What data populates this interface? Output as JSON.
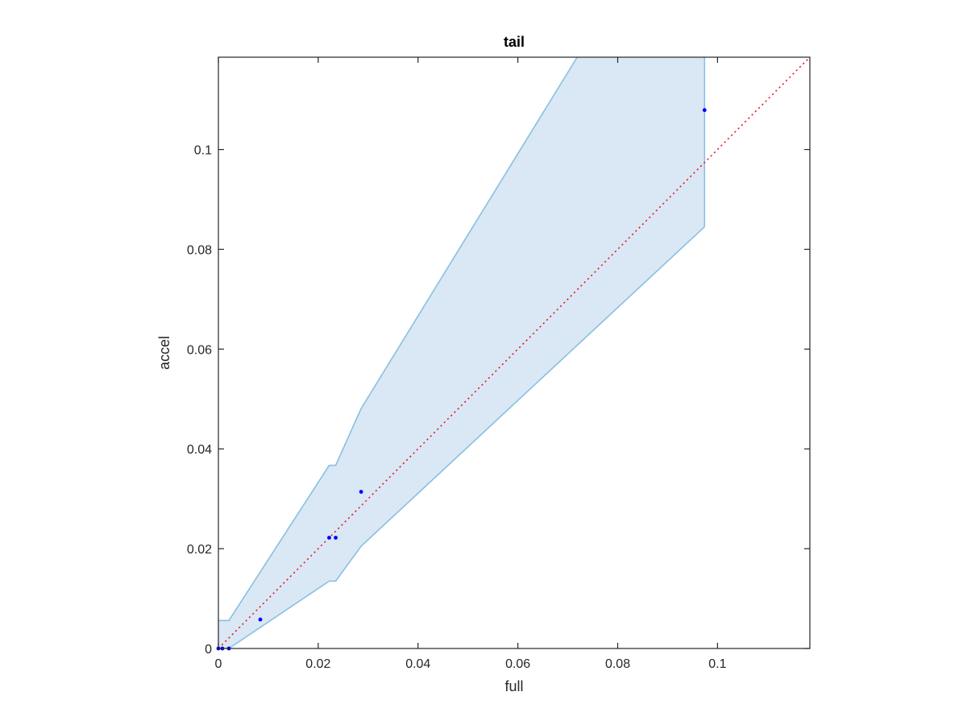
{
  "chart_data": {
    "type": "scatter",
    "title": "tail",
    "xlabel": "full",
    "ylabel": "accel",
    "xlim": [
      0,
      0.1185
    ],
    "ylim": [
      0,
      0.1185
    ],
    "grid": false,
    "legend": "none",
    "x_ticks": [
      {
        "value": 0,
        "label": "0"
      },
      {
        "value": 0.02,
        "label": "0.02"
      },
      {
        "value": 0.04,
        "label": "0.04"
      },
      {
        "value": 0.06,
        "label": "0.06"
      },
      {
        "value": 0.08,
        "label": "0.08"
      },
      {
        "value": 0.1,
        "label": "0.1"
      }
    ],
    "y_ticks": [
      {
        "value": 0,
        "label": "0"
      },
      {
        "value": 0.02,
        "label": "0.02"
      },
      {
        "value": 0.04,
        "label": "0.04"
      },
      {
        "value": 0.06,
        "label": "0.06"
      },
      {
        "value": 0.08,
        "label": "0.08"
      },
      {
        "value": 0.1,
        "label": "0.1"
      }
    ],
    "points": {
      "x": [
        0.0,
        0.0008,
        0.0021,
        0.0084,
        0.0222,
        0.0235,
        0.0286,
        0.0974
      ],
      "y": [
        0.0,
        0.0,
        0.0,
        0.0058,
        0.0222,
        0.0222,
        0.0314,
        0.1079
      ]
    },
    "band": {
      "x": [
        0.0,
        0.0021,
        0.0222,
        0.0235,
        0.0286,
        0.0974
      ],
      "upper": [
        0.0056,
        0.0056,
        0.0367,
        0.0367,
        0.0481,
        0.16
      ],
      "lower": [
        0.0,
        0.0,
        0.0135,
        0.0135,
        0.0205,
        0.0845
      ]
    },
    "reference_line": {
      "x": [
        0,
        0.1185
      ],
      "y": [
        0,
        0.1185
      ]
    },
    "colors": {
      "points": "#0000ff",
      "band_fill": "#d9e8f4",
      "band_edge": "#89bfe2",
      "reference_line": "#e8141a",
      "axes": "#262626",
      "title": "#000000"
    }
  }
}
